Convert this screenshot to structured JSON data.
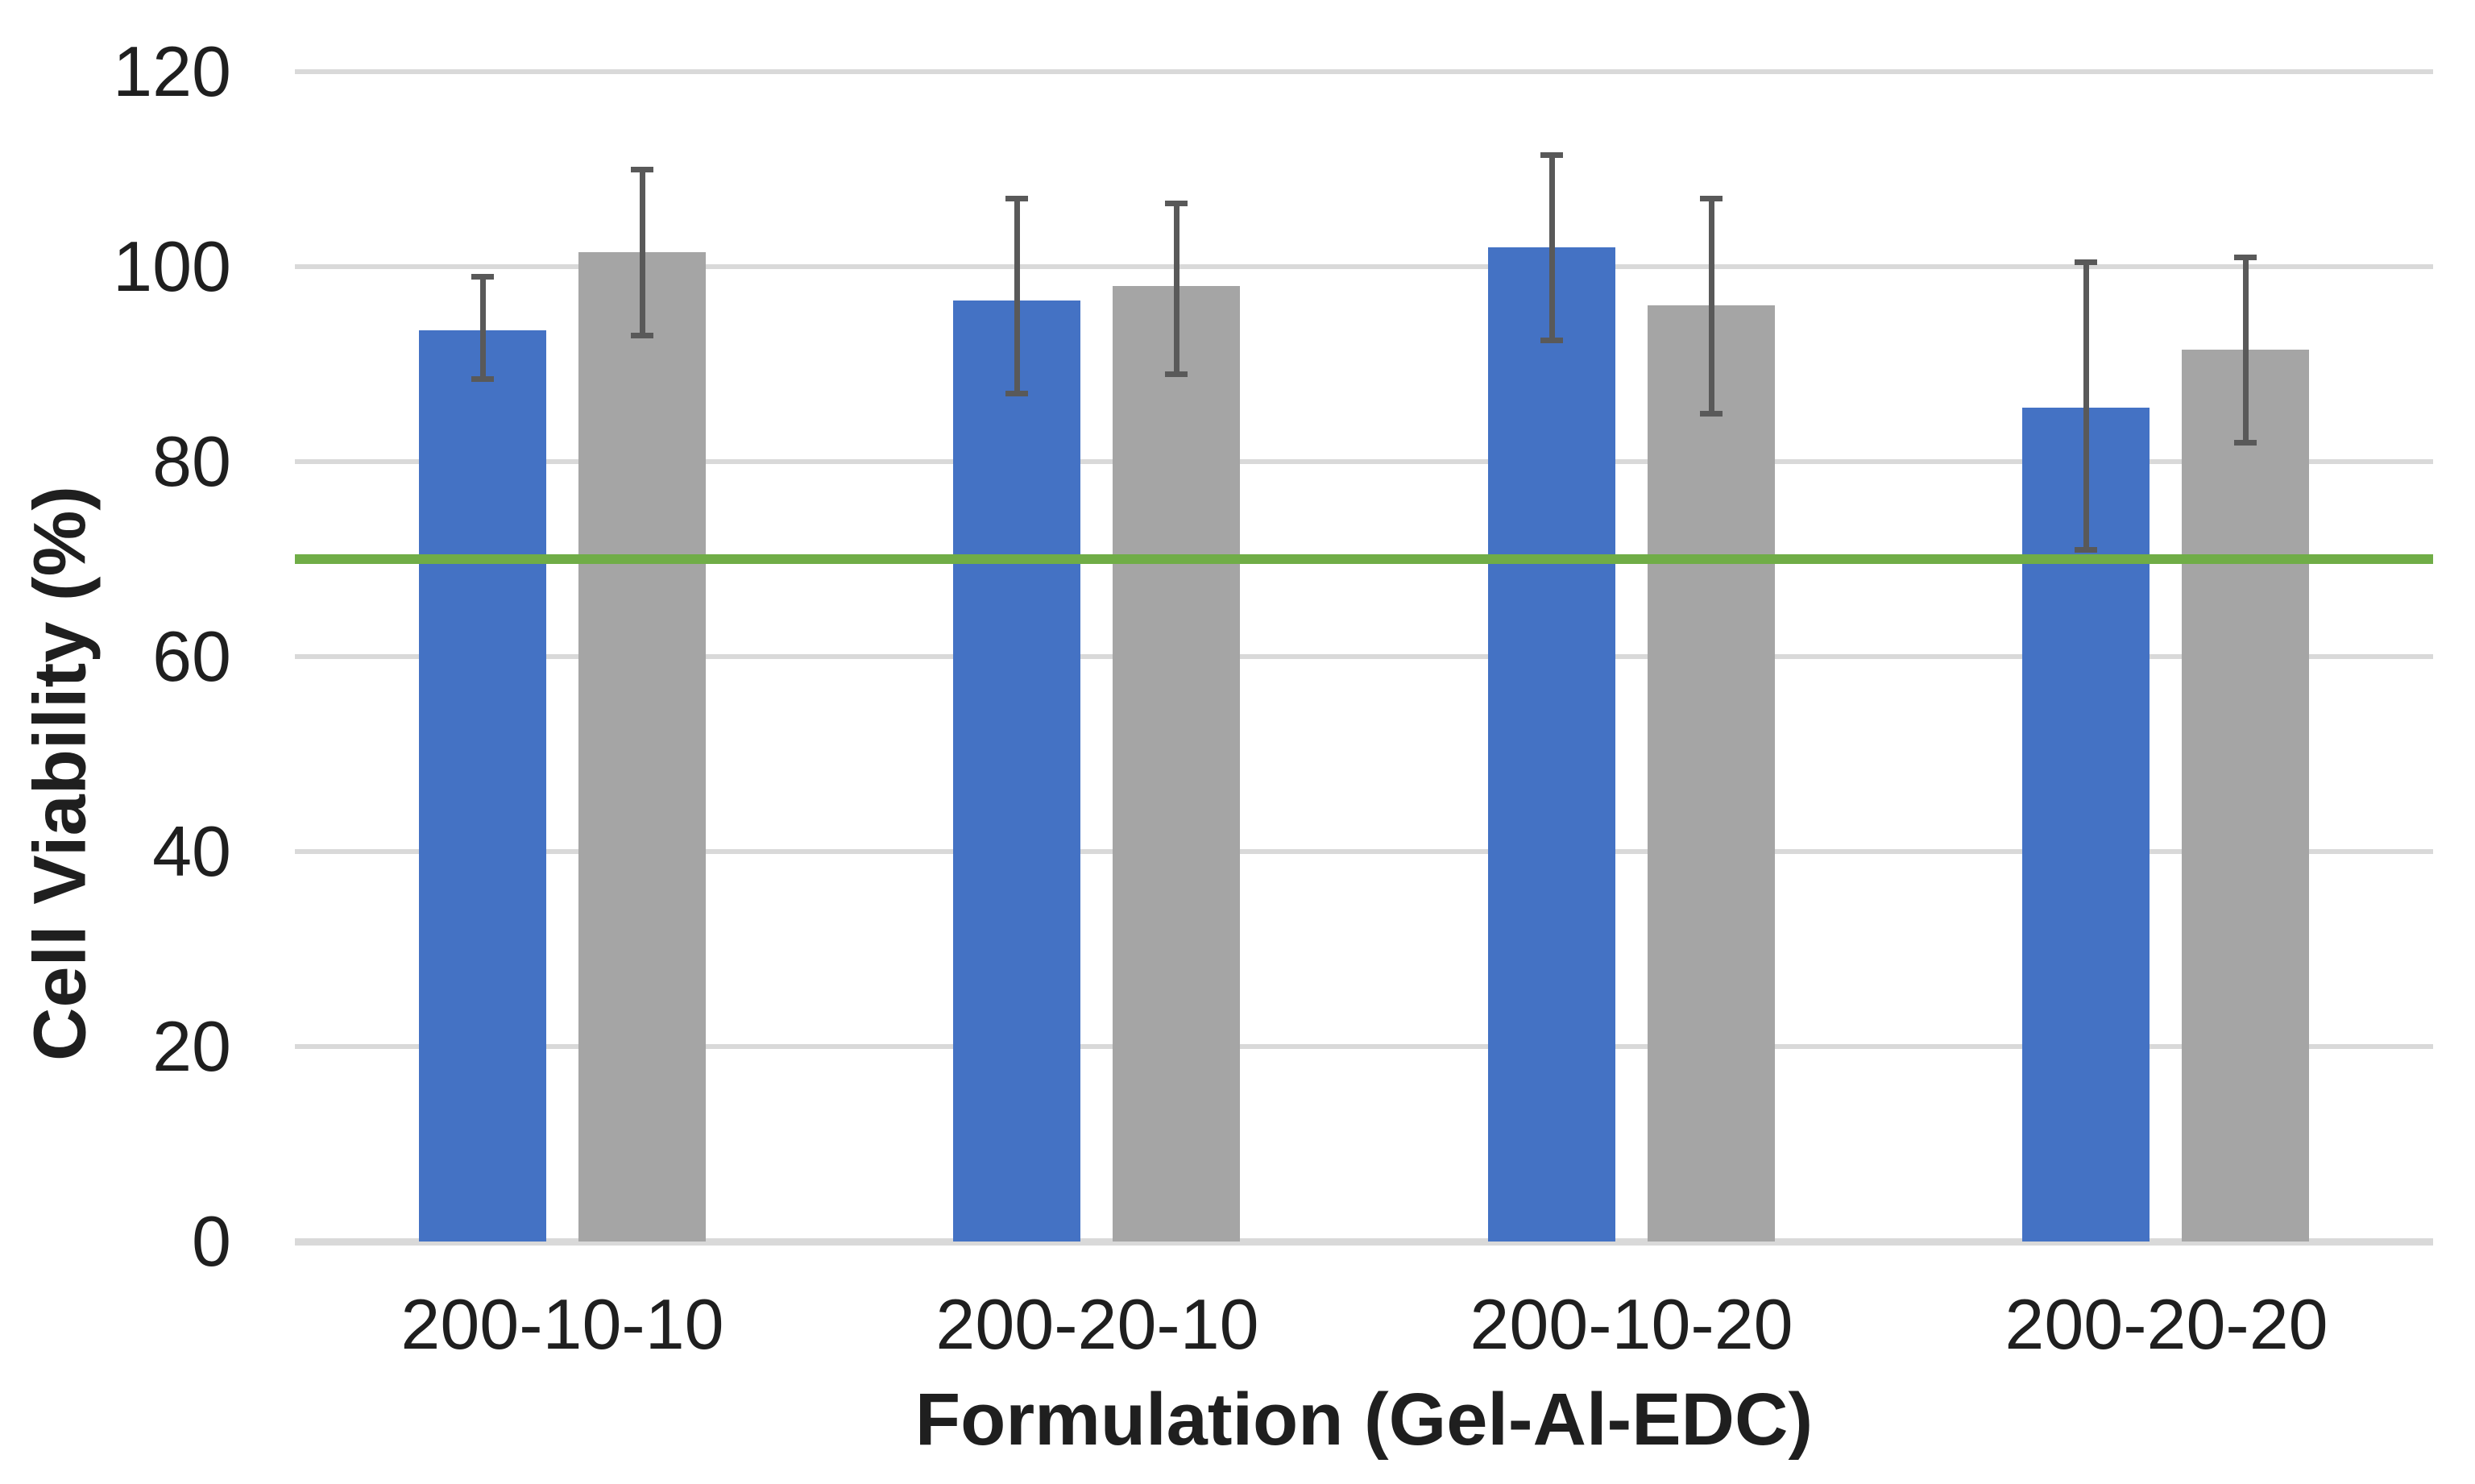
{
  "figure": {
    "background": "#ffffff",
    "text_color": "#1f1f1f",
    "gridline_color": "#d9d9d9",
    "axis_line_color": "#d9d9d9",
    "error_bar_color": "#595959"
  },
  "chart_data": {
    "type": "bar",
    "title": "",
    "xlabel": "Formulation (Gel-Al-EDC)",
    "ylabel": "Cell Viability (%)",
    "categories": [
      "200-10-10",
      "200-20-10",
      "200-10-20",
      "200-20-20"
    ],
    "series": [
      {
        "name": "blue",
        "color": "#4472c4",
        "values": [
          93.5,
          96.5,
          102,
          85.5
        ],
        "error_low": [
          88.5,
          87,
          92.5,
          71
        ],
        "error_high": [
          99,
          107,
          111.5,
          100.5
        ]
      },
      {
        "name": "gray",
        "color": "#a5a5a5",
        "values": [
          101.5,
          98,
          96,
          91.5
        ],
        "error_low": [
          93,
          89,
          85,
          82
        ],
        "error_high": [
          110,
          106.5,
          107,
          101
        ]
      }
    ],
    "ylim": [
      0,
      120
    ],
    "yticks": [
      0,
      20,
      40,
      60,
      80,
      100,
      120
    ],
    "grid": true,
    "legend": "none",
    "reference_line": {
      "value": 70,
      "color": "#70ad47"
    }
  }
}
